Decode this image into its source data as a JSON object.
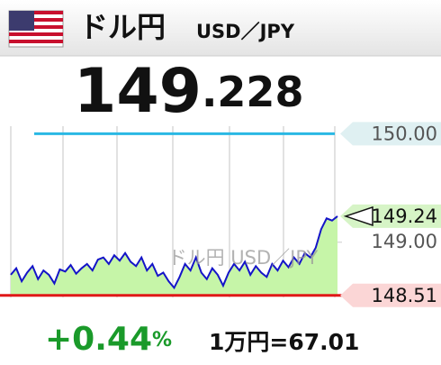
{
  "header": {
    "title": "ドル円",
    "subtitle": "USD／JPY"
  },
  "price": {
    "integer": "149",
    "decimal": ".228"
  },
  "chart_data": {
    "type": "line",
    "values": [
      148.7,
      148.76,
      148.64,
      148.72,
      148.78,
      148.66,
      148.74,
      148.7,
      148.62,
      148.75,
      148.73,
      148.79,
      148.71,
      148.76,
      148.8,
      148.74,
      148.84,
      148.86,
      148.8,
      148.88,
      148.83,
      148.9,
      148.82,
      148.78,
      148.86,
      148.74,
      148.8,
      148.69,
      148.72,
      148.64,
      148.58,
      148.68,
      148.8,
      148.74,
      148.86,
      148.72,
      148.66,
      148.76,
      148.7,
      148.6,
      148.72,
      148.8,
      148.74,
      148.82,
      148.7,
      148.78,
      148.72,
      148.68,
      148.8,
      148.74,
      148.83,
      148.77,
      148.86,
      148.8,
      148.9,
      148.86,
      148.95,
      149.12,
      149.22,
      149.2,
      149.24
    ],
    "color": "#1414c8",
    "area_color": "#c6f5a8",
    "ylim": [
      148.45,
      150.07
    ],
    "yticks": [
      {
        "value": 149,
        "label": "149.00"
      }
    ],
    "high": {
      "value": 150,
      "label": "150.00",
      "color": "#2ab8e4"
    },
    "low": {
      "value": 148.51,
      "label": "148.51",
      "color": "#e01818"
    },
    "current": {
      "value": 149.24,
      "label": "149.24"
    }
  },
  "footer": {
    "change": "+0.44",
    "change_unit": "%",
    "conversion": "1万円=67.01"
  }
}
